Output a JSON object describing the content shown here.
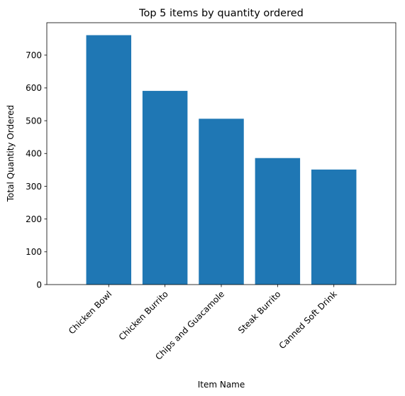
{
  "chart_data": {
    "type": "bar",
    "title": "Top 5 items by quantity ordered",
    "xlabel": "Item Name",
    "ylabel": "Total Quantity Ordered",
    "categories": [
      "Chicken Bowl",
      "Chicken Burrito",
      "Chips and Guacamole",
      "Steak Burrito",
      "Canned Soft Drink"
    ],
    "values": [
      761,
      591,
      506,
      386,
      351
    ],
    "ylim": [
      0,
      799
    ],
    "yticks": [
      0,
      100,
      200,
      300,
      400,
      500,
      600,
      700
    ],
    "ytick_labels": [
      "0",
      "100",
      "200",
      "300",
      "400",
      "500",
      "600",
      "700"
    ],
    "grid": false,
    "bar_color": "#1f77b4"
  }
}
